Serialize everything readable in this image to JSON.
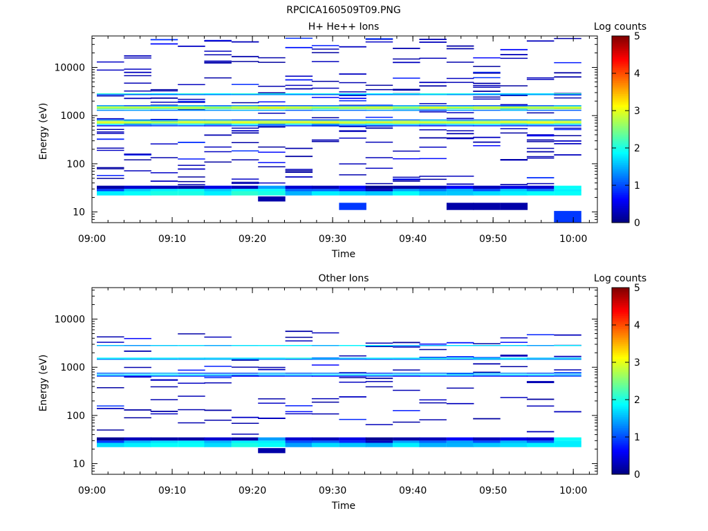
{
  "figure": {
    "title": "RPCICA160509T09.PNG"
  },
  "colormap": {
    "stops": [
      "#00007f",
      "#0000ff",
      "#007fff",
      "#00ffff",
      "#7fff7f",
      "#ffff00",
      "#ff7f00",
      "#ff0000",
      "#7f0000"
    ]
  },
  "chart_data": [
    {
      "type": "heatmap",
      "title": "H+ He++ Ions",
      "xlabel": "Time",
      "ylabel": "Energy (eV)",
      "yscale": "log",
      "xlim": [
        "09:00",
        "10:03"
      ],
      "ylim": [
        6,
        45000
      ],
      "xticks": [
        "09:00",
        "09:10",
        "09:20",
        "09:30",
        "09:40",
        "09:50",
        "10:00"
      ],
      "yticks": [
        {
          "value": 10,
          "label": "10"
        },
        {
          "value": 100,
          "label": "100"
        },
        {
          "value": 1000,
          "label": "1000"
        },
        {
          "value": 10000,
          "label": "10000"
        }
      ],
      "colorbar": {
        "label": "Log counts",
        "range": [
          0,
          5
        ],
        "ticks": [
          "0",
          "1",
          "2",
          "3",
          "4",
          "5"
        ]
      },
      "time_bins_min": [
        2.3,
        5.7,
        9.0,
        12.4,
        15.7,
        19.1,
        22.4,
        25.8,
        29.1,
        32.5,
        35.8,
        39.2,
        42.5,
        45.9,
        49.2,
        52.6,
        55.9,
        59.3
      ],
      "bands": [
        {
          "e": 2850,
          "v": 1.9
        },
        {
          "e": 2750,
          "v": 1.3
        },
        {
          "e": 1620,
          "v": 1.2
        },
        {
          "e": 1540,
          "v": 2.6
        },
        {
          "e": 1470,
          "v": 3.0
        },
        {
          "e": 1400,
          "v": 2.4
        },
        {
          "e": 1300,
          "v": 1.3
        },
        {
          "e": 820,
          "v": 1.2
        },
        {
          "e": 780,
          "v": 2.5
        },
        {
          "e": 740,
          "v": 3.0
        },
        {
          "e": 700,
          "v": 2.6
        },
        {
          "e": 660,
          "v": 1.6
        },
        {
          "e": 620,
          "v": 0.9
        }
      ],
      "low_blocks": [
        {
          "e0": 30,
          "e1": 35,
          "v": [
            0.2,
            0.4,
            0.3,
            0.2,
            0.5,
            0.3,
            1.4,
            0.4,
            0.3,
            0.6,
            0.1,
            0.2,
            0.3,
            0.6,
            0.3,
            0.5,
            0.4,
            1.9
          ]
        },
        {
          "e0": 27,
          "e1": 30,
          "v": [
            0.9,
            1.6,
            1.8,
            1.9,
            1.6,
            1.9,
            1.9,
            1.1,
            1.1,
            0.8,
            0.3,
            1.4,
            1.2,
            1.5,
            1.0,
            1.6,
            1.2,
            1.8
          ]
        },
        {
          "e0": 22,
          "e1": 27,
          "v": [
            1.8,
            1.9,
            2.0,
            2.0,
            1.8,
            2.1,
            2.0,
            1.5,
            1.8,
            1.7,
            1.6,
            1.9,
            1.6,
            1.6,
            1.7,
            1.8,
            1.9,
            1.9
          ]
        }
      ],
      "extra_blocks": [
        {
          "t": 6,
          "e0": 16.5,
          "e1": 21,
          "v": 0.2
        },
        {
          "t": 9,
          "e0": 11,
          "e1": 15.5,
          "v": 0.9
        },
        {
          "t": 13,
          "e0": 11,
          "e1": 15.5,
          "v": 0.2
        },
        {
          "t": 14,
          "e0": 11,
          "e1": 15.5,
          "v": 0.2
        },
        {
          "t": 15,
          "e0": 11,
          "e1": 15.5,
          "v": 0.2
        },
        {
          "t": 17,
          "e0": 6,
          "e1": 10.5,
          "v": 0.9
        }
      ],
      "scatter_count": 14,
      "scatter_range": [
        35,
        42000
      ],
      "scatter_seed": 7
    },
    {
      "type": "heatmap",
      "title": "Other Ions",
      "xlabel": "Time",
      "ylabel": "Energy (eV)",
      "yscale": "log",
      "xlim": [
        "09:00",
        "10:03"
      ],
      "ylim": [
        6,
        45000
      ],
      "xticks": [
        "09:00",
        "09:10",
        "09:20",
        "09:30",
        "09:40",
        "09:50",
        "10:00"
      ],
      "yticks": [
        {
          "value": 10,
          "label": "10"
        },
        {
          "value": 100,
          "label": "100"
        },
        {
          "value": 1000,
          "label": "1000"
        },
        {
          "value": 10000,
          "label": "10000"
        }
      ],
      "colorbar": {
        "label": "Log counts",
        "range": [
          0,
          5
        ],
        "ticks": [
          "0",
          "1",
          "2",
          "3",
          "4",
          "5"
        ]
      },
      "time_bins_min": [
        2.3,
        5.7,
        9.0,
        12.4,
        15.7,
        19.1,
        22.4,
        25.8,
        29.1,
        32.5,
        35.8,
        39.2,
        42.5,
        45.9,
        49.2,
        52.6,
        55.9,
        59.3
      ],
      "bands": [
        {
          "e": 2850,
          "v": 1.6
        },
        {
          "e": 1560,
          "v": 1.8
        },
        {
          "e": 1480,
          "v": 1.3
        },
        {
          "e": 760,
          "v": 1.2
        },
        {
          "e": 700,
          "v": 1.7
        },
        {
          "e": 660,
          "v": 0.8
        }
      ],
      "low_blocks": [
        {
          "e0": 30,
          "e1": 35,
          "v": [
            0.1,
            0.3,
            0.2,
            0.2,
            0.4,
            0.2,
            1.4,
            0.4,
            0.3,
            0.5,
            0.1,
            0.2,
            0.3,
            0.6,
            0.3,
            0.5,
            0.4,
            1.9
          ]
        },
        {
          "e0": 27,
          "e1": 30,
          "v": [
            0.9,
            1.5,
            1.7,
            1.8,
            1.5,
            1.8,
            1.8,
            1.0,
            1.1,
            0.8,
            0.3,
            1.4,
            1.1,
            1.4,
            1.0,
            1.5,
            1.1,
            1.8
          ]
        },
        {
          "e0": 22,
          "e1": 27,
          "v": [
            1.7,
            1.8,
            1.9,
            1.9,
            1.7,
            2.0,
            1.9,
            1.4,
            1.7,
            1.6,
            1.5,
            1.8,
            1.5,
            1.5,
            1.6,
            1.7,
            1.8,
            1.8
          ]
        }
      ],
      "extra_blocks": [
        {
          "t": 6,
          "e0": 16.5,
          "e1": 21,
          "v": 0.2
        }
      ],
      "scatter_count": 6,
      "scatter_range": [
        40,
        5500
      ],
      "scatter_seed": 31
    }
  ]
}
